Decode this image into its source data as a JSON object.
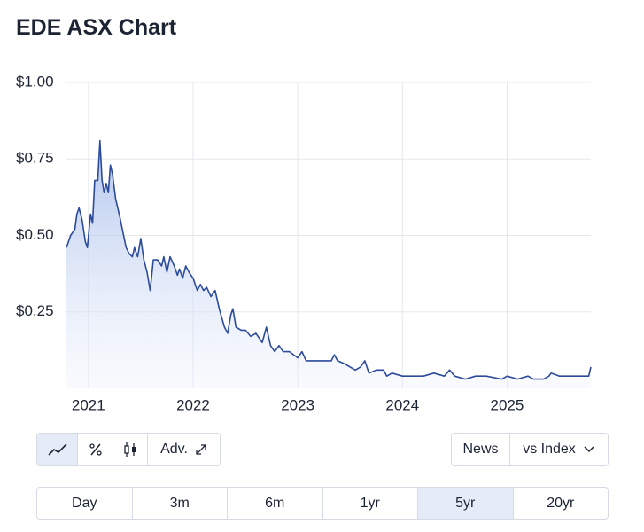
{
  "chart_data": {
    "type": "line",
    "title": "EDE ASX Chart",
    "x": [
      2020.79,
      2020.83,
      2020.87,
      2020.89,
      2020.91,
      2020.94,
      2020.97,
      2020.99,
      2021.02,
      2021.04,
      2021.06,
      2021.09,
      2021.11,
      2021.13,
      2021.15,
      2021.17,
      2021.19,
      2021.21,
      2021.23,
      2021.26,
      2021.3,
      2021.33,
      2021.36,
      2021.39,
      2021.42,
      2021.44,
      2021.47,
      2021.5,
      2021.53,
      2021.56,
      2021.59,
      2021.62,
      2021.66,
      2021.7,
      2021.72,
      2021.75,
      2021.78,
      2021.82,
      2021.85,
      2021.87,
      2021.9,
      2021.93,
      2021.96,
      2022.0,
      2022.04,
      2022.07,
      2022.1,
      2022.13,
      2022.17,
      2022.21,
      2022.25,
      2022.3,
      2022.33,
      2022.36,
      2022.38,
      2022.41,
      2022.46,
      2022.5,
      2022.55,
      2022.6,
      2022.66,
      2022.7,
      2022.74,
      2022.78,
      2022.82,
      2022.86,
      2022.92,
      2022.96,
      2023.0,
      2023.04,
      2023.08,
      2023.15,
      2023.25,
      2023.32,
      2023.35,
      2023.38,
      2023.45,
      2023.5,
      2023.55,
      2023.6,
      2023.64,
      2023.68,
      2023.75,
      2023.82,
      2023.85,
      2023.9,
      2024.0,
      2024.2,
      2024.3,
      2024.4,
      2024.45,
      2024.5,
      2024.6,
      2024.7,
      2024.8,
      2024.95,
      2025.0,
      2025.1,
      2025.2,
      2025.25,
      2025.35,
      2025.4,
      2025.42,
      2025.5,
      2025.6,
      2025.7,
      2025.78,
      2025.8
    ],
    "series": [
      {
        "name": "EDE",
        "color": "#2d4b9b",
        "values": [
          0.46,
          0.5,
          0.52,
          0.57,
          0.59,
          0.55,
          0.48,
          0.46,
          0.57,
          0.54,
          0.68,
          0.68,
          0.81,
          0.68,
          0.64,
          0.67,
          0.64,
          0.73,
          0.7,
          0.62,
          0.56,
          0.51,
          0.46,
          0.44,
          0.43,
          0.46,
          0.43,
          0.49,
          0.42,
          0.38,
          0.32,
          0.42,
          0.42,
          0.4,
          0.43,
          0.38,
          0.43,
          0.4,
          0.37,
          0.39,
          0.36,
          0.4,
          0.38,
          0.36,
          0.32,
          0.34,
          0.32,
          0.33,
          0.3,
          0.32,
          0.26,
          0.2,
          0.18,
          0.24,
          0.26,
          0.2,
          0.19,
          0.19,
          0.17,
          0.18,
          0.15,
          0.2,
          0.14,
          0.12,
          0.14,
          0.12,
          0.12,
          0.11,
          0.1,
          0.12,
          0.09,
          0.09,
          0.09,
          0.09,
          0.11,
          0.09,
          0.08,
          0.07,
          0.06,
          0.07,
          0.09,
          0.05,
          0.06,
          0.06,
          0.04,
          0.05,
          0.04,
          0.04,
          0.05,
          0.04,
          0.06,
          0.04,
          0.03,
          0.04,
          0.04,
          0.03,
          0.04,
          0.03,
          0.04,
          0.03,
          0.03,
          0.04,
          0.05,
          0.04,
          0.04,
          0.04,
          0.04,
          0.07
        ]
      }
    ],
    "xlim": [
      2020.79,
      2025.8
    ],
    "xticks": [
      2021,
      2022,
      2023,
      2024,
      2025
    ],
    "ylim": [
      0,
      1
    ],
    "yticks": [
      {
        "value": 0.25,
        "label": "$0.25"
      },
      {
        "value": 0.5,
        "label": "$0.50"
      },
      {
        "value": 0.75,
        "label": "$0.75"
      },
      {
        "value": 1,
        "label": "$1.00"
      }
    ],
    "grid": true
  },
  "controls": {
    "advanced": "Adv.",
    "news": "News",
    "index": "vs Index",
    "ranges": [
      "Day",
      "3m",
      "6m",
      "1yr",
      "5yr",
      "20yr"
    ],
    "selected_range": 4
  }
}
